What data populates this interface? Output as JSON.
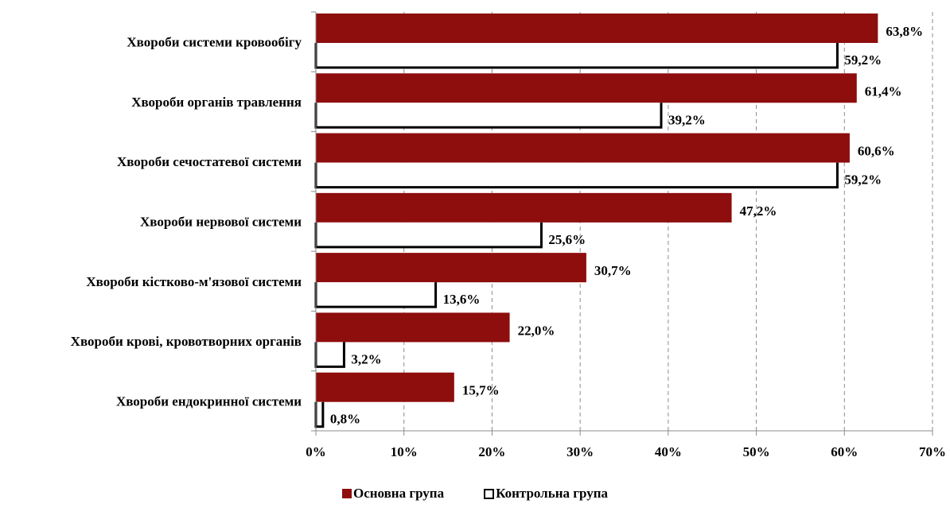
{
  "chart_data": {
    "type": "bar",
    "orientation": "horizontal",
    "categories": [
      "Хвороби системи кровообігу",
      "Хвороби органів травлення",
      "Хвороби сечостатевої системи",
      "Хвороби нервової системи",
      "Хвороби кістково-м'язової системи",
      "Хвороби крові, кровотворних органів",
      "Хвороби ендокринної системи"
    ],
    "series": [
      {
        "name": "Основна група",
        "values": [
          63.8,
          61.4,
          60.6,
          47.2,
          30.7,
          22.0,
          15.7
        ],
        "labels": [
          "63,8%",
          "61,4%",
          "60,6%",
          "47,2%",
          "30,7%",
          "22,0%",
          "15,7%"
        ],
        "color": "#8e0d0d"
      },
      {
        "name": "Контрольна група",
        "values": [
          59.2,
          39.2,
          59.2,
          25.6,
          13.6,
          3.2,
          0.8
        ],
        "labels": [
          "59,2%",
          "39,2%",
          "59,2%",
          "25,6%",
          "13,6%",
          "3,2%",
          "0,8%"
        ],
        "color": "#ffffff",
        "border": "#000000"
      }
    ],
    "xlim": [
      0,
      70
    ],
    "x_ticks": [
      "0%",
      "10%",
      "20%",
      "30%",
      "40%",
      "50%",
      "60%",
      "70%"
    ],
    "grid": "vertical dashed",
    "legend_position": "bottom"
  },
  "legend": {
    "main_label": "Основна група",
    "control_label": "Контрольна група"
  }
}
